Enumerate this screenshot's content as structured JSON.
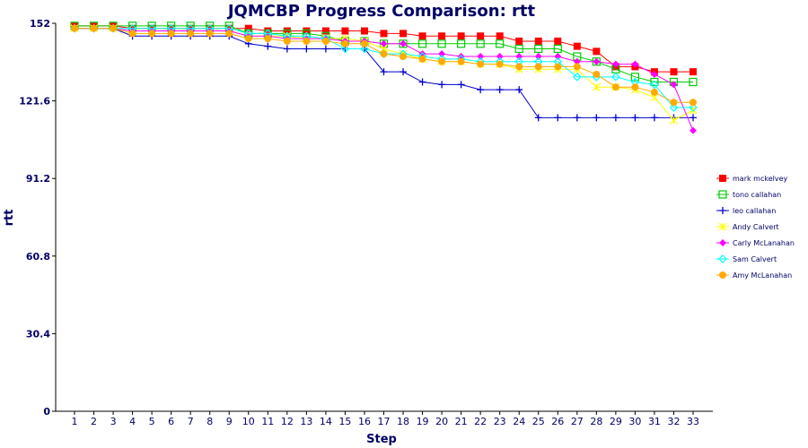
{
  "chart_data": {
    "type": "line",
    "title": "JQMCBP Progress Comparison: rtt",
    "xlabel": "Step",
    "ylabel": "rtt",
    "ylim": [
      0,
      152
    ],
    "yticks": [
      0,
      30.4,
      60.8,
      91.2,
      121.6,
      152
    ],
    "ytick_labels": [
      "0",
      "30.4",
      "60.8",
      "91.2",
      "121.6",
      "152"
    ],
    "x": [
      1,
      2,
      3,
      4,
      5,
      6,
      7,
      8,
      9,
      10,
      11,
      12,
      13,
      14,
      15,
      16,
      17,
      18,
      19,
      20,
      21,
      22,
      23,
      24,
      25,
      26,
      27,
      28,
      29,
      30,
      31,
      32,
      33
    ],
    "grid": false,
    "legend_position": "right",
    "series": [
      {
        "name": "mark mckelvey",
        "color": "#ff0000",
        "marker": "square-filled",
        "values": [
          151,
          151,
          151,
          150,
          150,
          150,
          150,
          150,
          150,
          150,
          149,
          149,
          149,
          149,
          149,
          149,
          148,
          148,
          147,
          147,
          147,
          147,
          147,
          145,
          145,
          145,
          143,
          141,
          135,
          135,
          133,
          133,
          133
        ]
      },
      {
        "name": "tono callahan",
        "color": "#00cc00",
        "marker": "square-open",
        "values": [
          151,
          151,
          151,
          151,
          151,
          151,
          151,
          151,
          151,
          148,
          148,
          148,
          148,
          147,
          145,
          145,
          144,
          144,
          144,
          144,
          144,
          144,
          144,
          142,
          142,
          142,
          139,
          137,
          134,
          131,
          129,
          129,
          129
        ]
      },
      {
        "name": "leo callahan",
        "color": "#0000cc",
        "marker": "plus",
        "values": [
          150,
          150,
          150,
          147,
          147,
          147,
          147,
          147,
          147,
          144,
          143,
          142,
          142,
          142,
          142,
          142,
          133,
          133,
          129,
          128,
          128,
          126,
          126,
          126,
          115,
          115,
          115,
          115,
          115,
          115,
          115,
          115,
          115
        ]
      },
      {
        "name": "Andy Calvert",
        "color": "#ffff00",
        "marker": "cross",
        "values": [
          150,
          150,
          150,
          149,
          149,
          149,
          149,
          149,
          149,
          147,
          147,
          147,
          146,
          146,
          146,
          145,
          142,
          140,
          138,
          137,
          137,
          136,
          136,
          134,
          134,
          134,
          134,
          127,
          127,
          126,
          123,
          114,
          118
        ]
      },
      {
        "name": "Carly McLanahan",
        "color": "#ff00ff",
        "marker": "diamond-filled",
        "values": [
          150,
          150,
          150,
          149,
          149,
          149,
          149,
          149,
          149,
          147,
          147,
          146,
          146,
          146,
          145,
          145,
          144,
          144,
          140,
          140,
          139,
          139,
          139,
          139,
          139,
          139,
          137,
          137,
          136,
          136,
          132,
          128,
          110
        ]
      },
      {
        "name": "Sam Calvert",
        "color": "#00ffff",
        "marker": "diamond-open",
        "values": [
          150,
          150,
          150,
          150,
          150,
          150,
          150,
          150,
          150,
          148,
          148,
          147,
          147,
          146,
          142,
          142,
          140,
          140,
          139,
          138,
          138,
          137,
          137,
          137,
          137,
          137,
          131,
          131,
          131,
          129,
          128,
          119,
          119
        ]
      },
      {
        "name": "Amy McLanahan",
        "color": "#ffaa00",
        "marker": "circle-filled",
        "values": [
          150,
          150,
          150,
          148,
          148,
          148,
          148,
          148,
          148,
          146,
          146,
          145,
          145,
          145,
          144,
          144,
          140,
          139,
          138,
          137,
          137,
          136,
          136,
          135,
          135,
          135,
          135,
          132,
          127,
          127,
          125,
          121,
          121
        ]
      }
    ]
  }
}
